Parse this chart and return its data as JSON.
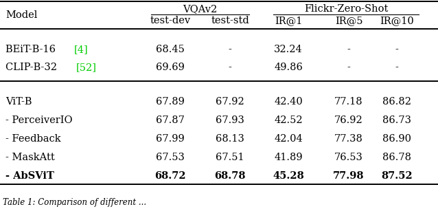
{
  "col_headers_row1_vqav2": "VQAv2",
  "col_headers_row1_flickr": "Flickr-Zero-Shot",
  "col_headers_row2": [
    "Model",
    "test-dev",
    "test-std",
    "IR@1",
    "IR@5",
    "IR@10"
  ],
  "group1_rows": [
    {
      "model_base": "BEiT-B-16 ",
      "model_cite": "[4]",
      "vals": [
        "68.45",
        "-",
        "32.24",
        "-",
        "-"
      ]
    },
    {
      "model_base": "CLIP-B-32 ",
      "model_cite": "[52]",
      "vals": [
        "69.69",
        "-",
        "49.86",
        "-",
        "-"
      ]
    }
  ],
  "group2_rows": [
    [
      "ViT-B",
      "67.89",
      "67.92",
      "42.40",
      "77.18",
      "86.82"
    ],
    [
      "- PerceiverIO",
      "67.87",
      "67.93",
      "42.52",
      "76.92",
      "86.73"
    ],
    [
      "- Feedback",
      "67.99",
      "68.13",
      "42.04",
      "77.38",
      "86.90"
    ],
    [
      "- MaskAtt",
      "67.53",
      "67.51",
      "41.89",
      "76.53",
      "86.78"
    ],
    [
      "- AbSViT",
      "68.72",
      "68.78",
      "45.28",
      "77.98",
      "87.52"
    ]
  ],
  "bold_row_idx": 4,
  "cite_color": "#00cc00",
  "bg_color": "#ffffff",
  "text_color": "#000000",
  "font_size": 10.5,
  "caption": "Table 1: Comparison of different ..."
}
